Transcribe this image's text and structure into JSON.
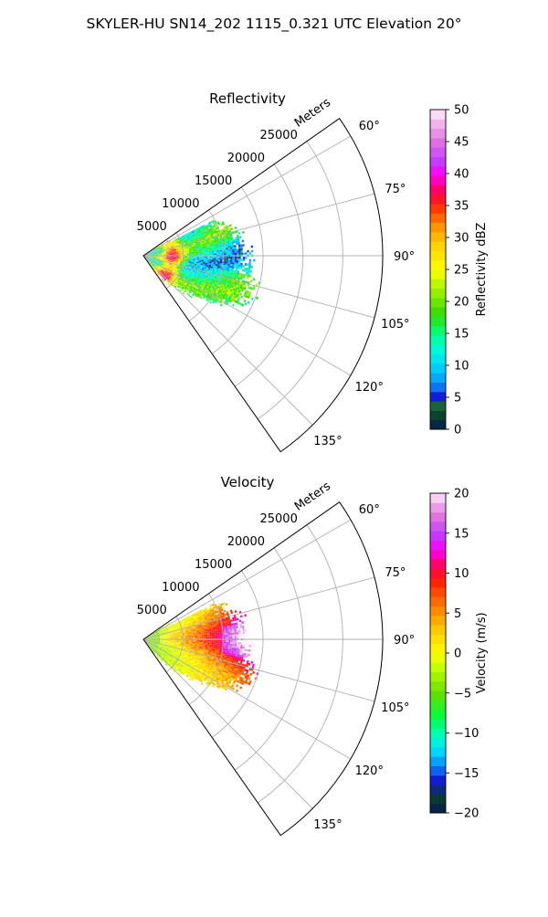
{
  "figure": {
    "title": "SKYLER-HU  SN14_202  1115_0.321 UTC Elevation 20°"
  },
  "chart_data": [
    {
      "type": "heatmap",
      "projection": "polar-sector",
      "title": "Reflectivity",
      "radial_label": "Meters",
      "radial_ticks": [
        5000,
        10000,
        15000,
        20000,
        25000
      ],
      "radial_tick_labels": [
        "5000",
        "10000",
        "15000",
        "20000",
        "25000"
      ],
      "rlim": [
        0,
        30000
      ],
      "angle_ticks": [
        60,
        75,
        90,
        105,
        120,
        135
      ],
      "angle_tick_labels": [
        "60°",
        "75°",
        "90°",
        "105°",
        "120°",
        "135°"
      ],
      "theta_range_deg": [
        55,
        145
      ],
      "grid": true,
      "echo_extent_m": [
        0,
        16000
      ],
      "colorbar": {
        "label": "Reflectivity dBZ",
        "range": [
          0,
          50
        ],
        "ticks": [
          0,
          5,
          10,
          15,
          20,
          25,
          30,
          35,
          40,
          45,
          50
        ],
        "tick_labels": [
          "0",
          "5",
          "10",
          "15",
          "20",
          "25",
          "30",
          "35",
          "40",
          "45",
          "50"
        ],
        "stops": [
          {
            "value": 0,
            "color": "#061a52"
          },
          {
            "value": 2,
            "color": "#0b3d2f"
          },
          {
            "value": 4,
            "color": "#1e6c3c"
          },
          {
            "value": 5,
            "color": "#1414d2"
          },
          {
            "value": 7,
            "color": "#0a8cff"
          },
          {
            "value": 10,
            "color": "#00d7ff"
          },
          {
            "value": 13,
            "color": "#00ffcc"
          },
          {
            "value": 15,
            "color": "#00ff7f"
          },
          {
            "value": 18,
            "color": "#33dd00"
          },
          {
            "value": 21,
            "color": "#88ee00"
          },
          {
            "value": 25,
            "color": "#ffff00"
          },
          {
            "value": 29,
            "color": "#ffd200"
          },
          {
            "value": 32,
            "color": "#ff8c00"
          },
          {
            "value": 35,
            "color": "#ff2a00"
          },
          {
            "value": 37,
            "color": "#ff0050"
          },
          {
            "value": 40,
            "color": "#ff00ff"
          },
          {
            "value": 42,
            "color": "#c040ff"
          },
          {
            "value": 45,
            "color": "#e070e0"
          },
          {
            "value": 48,
            "color": "#f2b8ee"
          },
          {
            "value": 50,
            "color": "#fff0fa"
          }
        ]
      }
    },
    {
      "type": "heatmap",
      "projection": "polar-sector",
      "title": "Velocity",
      "radial_label": "Meters",
      "radial_ticks": [
        5000,
        10000,
        15000,
        20000,
        25000
      ],
      "radial_tick_labels": [
        "5000",
        "10000",
        "15000",
        "20000",
        "25000"
      ],
      "rlim": [
        0,
        30000
      ],
      "angle_ticks": [
        60,
        75,
        90,
        105,
        120,
        135
      ],
      "angle_tick_labels": [
        "60°",
        "75°",
        "90°",
        "105°",
        "120°",
        "135°"
      ],
      "theta_range_deg": [
        55,
        145
      ],
      "grid": true,
      "echo_extent_m": [
        0,
        16000
      ],
      "colorbar": {
        "label": "Velocity (m/s)",
        "range": [
          -20,
          20
        ],
        "ticks": [
          -20,
          -15,
          -10,
          -5,
          0,
          5,
          10,
          15,
          20
        ],
        "tick_labels": [
          "−20",
          "−15",
          "−10",
          "−5",
          "0",
          "5",
          "10",
          "15",
          "20"
        ],
        "stops": [
          {
            "value": -20,
            "color": "#061a52"
          },
          {
            "value": -18,
            "color": "#0b3d2f"
          },
          {
            "value": -16,
            "color": "#1414d2"
          },
          {
            "value": -14,
            "color": "#0a8cff"
          },
          {
            "value": -12,
            "color": "#00e5ff"
          },
          {
            "value": -10,
            "color": "#00ffb0"
          },
          {
            "value": -8,
            "color": "#00ff40"
          },
          {
            "value": -5,
            "color": "#66dd00"
          },
          {
            "value": -2,
            "color": "#bbff00"
          },
          {
            "value": 0,
            "color": "#ffff00"
          },
          {
            "value": 3,
            "color": "#ffc800"
          },
          {
            "value": 6,
            "color": "#ff7800"
          },
          {
            "value": 9,
            "color": "#ff2000"
          },
          {
            "value": 11,
            "color": "#ff0060"
          },
          {
            "value": 13,
            "color": "#ff00ff"
          },
          {
            "value": 15,
            "color": "#c040ff"
          },
          {
            "value": 17,
            "color": "#e070e0"
          },
          {
            "value": 19,
            "color": "#f2b8ee"
          },
          {
            "value": 20,
            "color": "#fff0fa"
          }
        ]
      }
    }
  ]
}
